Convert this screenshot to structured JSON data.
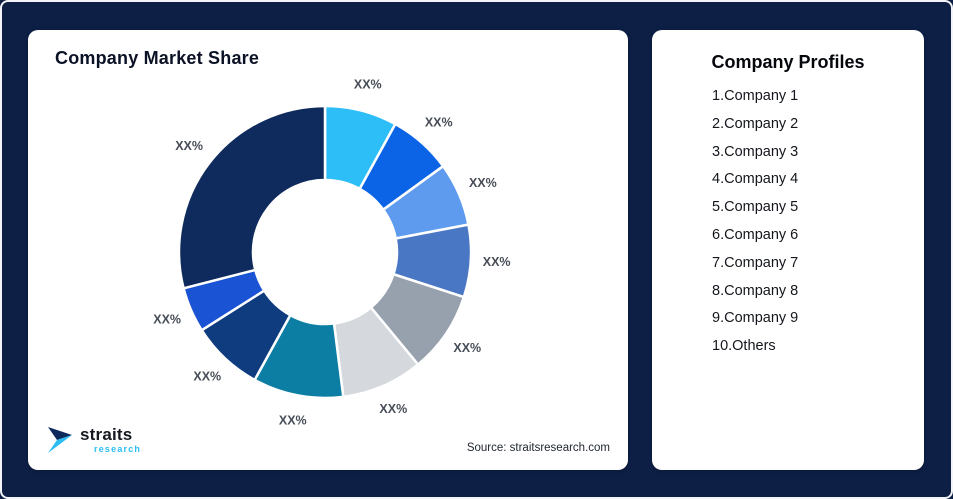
{
  "background_color": "#0D1F45",
  "chart_card": {
    "title": "Company Market Share",
    "source": "Source: straitsresearch.com",
    "logo": {
      "name": "straits",
      "sub": "research",
      "accent_color": "#29BDF4",
      "dark_color": "#0E2A5C"
    }
  },
  "profiles_card": {
    "title": "Company Profiles",
    "items": [
      "1.Company 1",
      "2.Company 2",
      "3.Company 3",
      "4.Company 4",
      "5.Company 5",
      "6.Company 6",
      "7.Company 7",
      "8.Company 8",
      "9.Company 9",
      "10.Others"
    ]
  },
  "chart_data": {
    "type": "pie",
    "title": "Company Market Share",
    "donut": true,
    "start_angle_deg": 0,
    "direction": "clockwise",
    "inner_radius_ratio": 0.49,
    "legend_position": "none",
    "segments": [
      {
        "name": "segment-1",
        "label": "XX%",
        "value": 8,
        "color": "#2EBEF7"
      },
      {
        "name": "segment-2",
        "label": "XX%",
        "value": 7,
        "color": "#0B63E5"
      },
      {
        "name": "segment-3",
        "label": "XX%",
        "value": 7,
        "color": "#5E9BEF"
      },
      {
        "name": "segment-4",
        "label": "XX%",
        "value": 8,
        "color": "#4A77C4"
      },
      {
        "name": "segment-5",
        "label": "XX%",
        "value": 9,
        "color": "#97A1AD"
      },
      {
        "name": "segment-6",
        "label": "XX%",
        "value": 9,
        "color": "#D5D9DE"
      },
      {
        "name": "segment-7",
        "label": "XX%",
        "value": 10,
        "color": "#0C7EA4"
      },
      {
        "name": "segment-8",
        "label": "XX%",
        "value": 8,
        "color": "#0E3C7E"
      },
      {
        "name": "segment-9",
        "label": "XX%",
        "value": 5,
        "color": "#1A53D3"
      },
      {
        "name": "segment-10",
        "label": "XX%",
        "value": 29,
        "color": "#0F2A5C"
      }
    ]
  }
}
